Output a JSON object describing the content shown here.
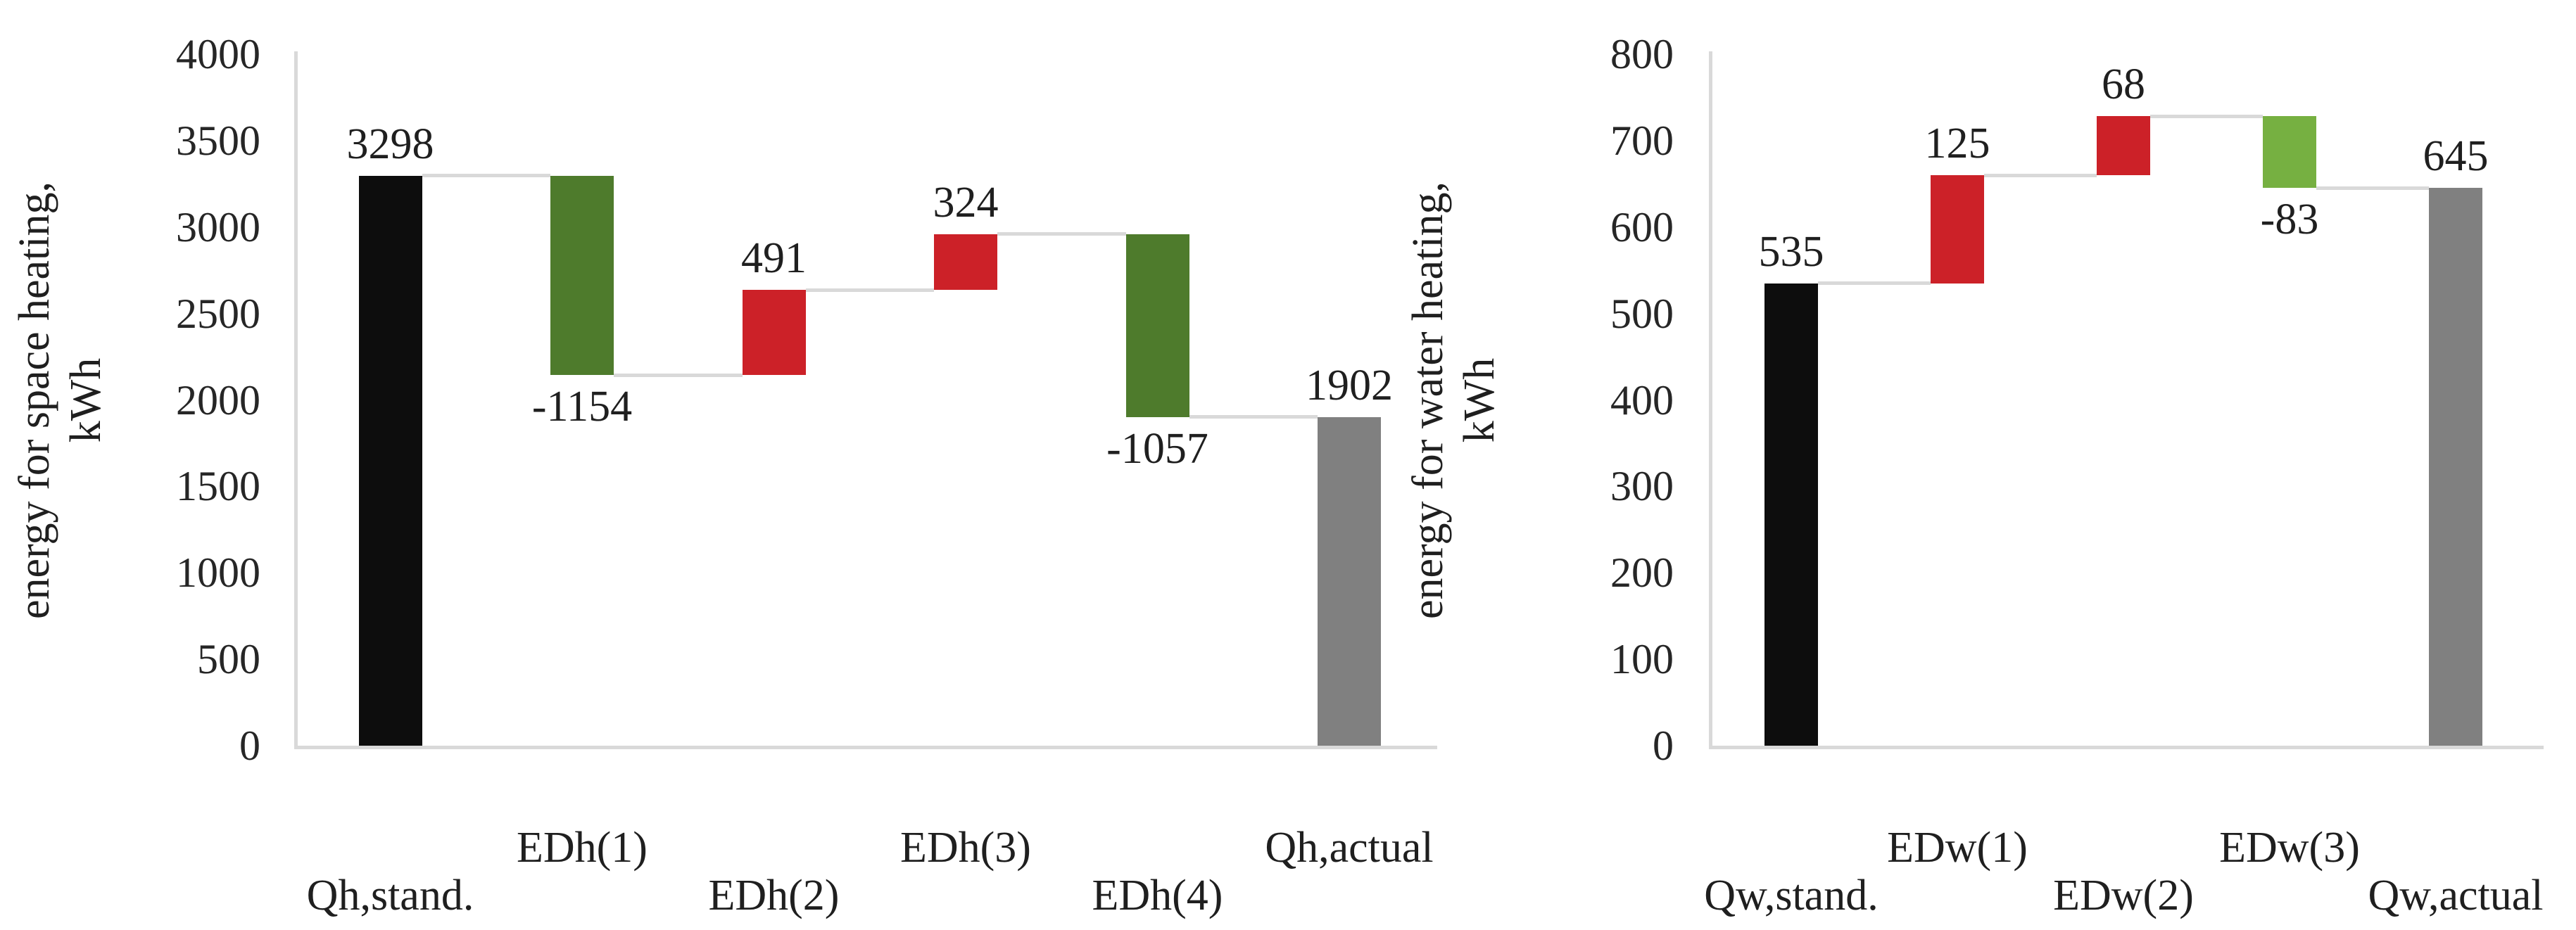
{
  "figure": {
    "background_color": "#ffffff",
    "text_color": "#1f1f1f",
    "axis_line_color": "#d9d9d9",
    "connector_color": "#d9d9d9"
  },
  "chart_data": [
    {
      "type": "bar",
      "subtype": "waterfall",
      "title": "",
      "ylabel_lines": [
        "energy for space heating,",
        "kWh"
      ],
      "xlabel": "",
      "ylim": [
        0,
        4000
      ],
      "ytick_step": 500,
      "ytick_labels": [
        "4000",
        "3500",
        "3000",
        "2500",
        "2000",
        "1500",
        "1000",
        "500",
        "0"
      ],
      "grid": false,
      "legend": "none",
      "categories": [
        {
          "label": "Qh,stand.",
          "row": "lower"
        },
        {
          "label": "EDh(1)",
          "row": "upper"
        },
        {
          "label": "EDh(2)",
          "row": "lower"
        },
        {
          "label": "EDh(3)",
          "row": "upper"
        },
        {
          "label": "EDh(4)",
          "row": "lower"
        },
        {
          "label": "Qh,actual",
          "row": "upper"
        }
      ],
      "bars": [
        {
          "category": "Qh,stand.",
          "value": 3298,
          "label": "3298",
          "from": 0,
          "to": 3298,
          "color": "#0d0d0d",
          "label_position": "above",
          "role": "start"
        },
        {
          "category": "EDh(1)",
          "value": -1154,
          "label": "-1154",
          "from": 3298,
          "to": 2144,
          "color": "#4e7b2c",
          "label_position": "below",
          "role": "decrease"
        },
        {
          "category": "EDh(2)",
          "value": 491,
          "label": "491",
          "from": 2144,
          "to": 2635,
          "color": "#cc2128",
          "label_position": "above",
          "role": "increase"
        },
        {
          "category": "EDh(3)",
          "value": 324,
          "label": "324",
          "from": 2635,
          "to": 2959,
          "color": "#cc2128",
          "label_position": "above",
          "role": "increase"
        },
        {
          "category": "EDh(4)",
          "value": -1057,
          "label": "-1057",
          "from": 2959,
          "to": 1902,
          "color": "#4e7b2c",
          "label_position": "below",
          "role": "decrease"
        },
        {
          "category": "Qh,actual",
          "value": 1902,
          "label": "1902",
          "from": 0,
          "to": 1902,
          "color": "#808080",
          "label_position": "above",
          "role": "total"
        }
      ]
    },
    {
      "type": "bar",
      "subtype": "waterfall",
      "title": "",
      "ylabel_lines": [
        "energy for water heating,",
        "kWh"
      ],
      "xlabel": "",
      "ylim": [
        0,
        800
      ],
      "ytick_step": 100,
      "ytick_labels": [
        "800",
        "700",
        "600",
        "500",
        "400",
        "300",
        "200",
        "100",
        "0"
      ],
      "grid": false,
      "legend": "none",
      "categories": [
        {
          "label": "Qw,stand.",
          "row": "lower"
        },
        {
          "label": "EDw(1)",
          "row": "upper"
        },
        {
          "label": "EDw(2)",
          "row": "lower"
        },
        {
          "label": "EDw(3)",
          "row": "upper"
        },
        {
          "label": "Qw,actual",
          "row": "lower"
        }
      ],
      "bars": [
        {
          "category": "Qw,stand.",
          "value": 535,
          "label": "535",
          "from": 0,
          "to": 535,
          "color": "#0d0d0d",
          "label_position": "above",
          "role": "start"
        },
        {
          "category": "EDw(1)",
          "value": 125,
          "label": "125",
          "from": 535,
          "to": 660,
          "color": "#cc2128",
          "label_position": "above",
          "role": "increase"
        },
        {
          "category": "EDw(2)",
          "value": 68,
          "label": "68",
          "from": 660,
          "to": 728,
          "color": "#cc2128",
          "label_position": "above",
          "role": "increase"
        },
        {
          "category": "EDw(3)",
          "value": -83,
          "label": "-83",
          "from": 728,
          "to": 645,
          "color": "#76b041",
          "label_position": "below",
          "role": "decrease"
        },
        {
          "category": "Qw,actual",
          "value": 645,
          "label": "645",
          "from": 0,
          "to": 645,
          "color": "#808080",
          "label_position": "above",
          "role": "total"
        }
      ]
    }
  ]
}
